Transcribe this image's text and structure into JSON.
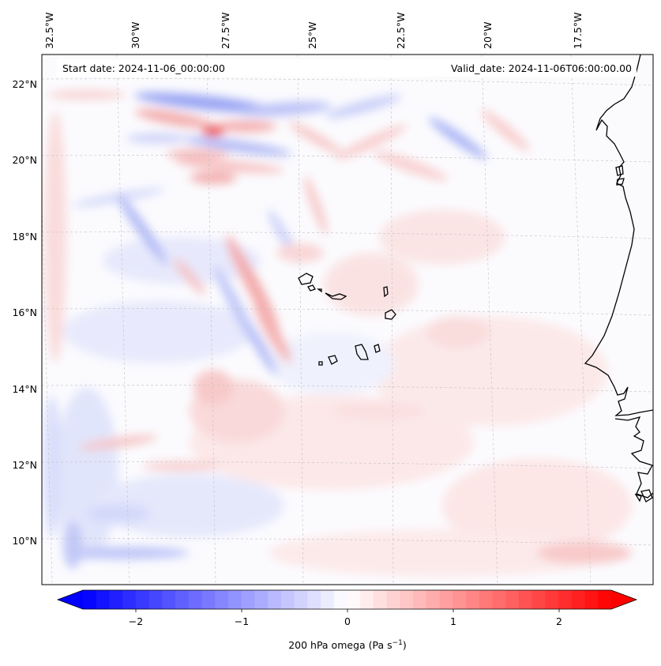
{
  "map": {
    "header_left": "Start date: 2024-11-06_00:00:00",
    "header_right": "Valid_date: 2024-11-06T06:00:00.00",
    "lon_labels": [
      "32.5°W",
      "30°W",
      "27.5°W",
      "25°W",
      "22.5°W",
      "20°W",
      "17.5°W"
    ],
    "lat_labels": [
      "22°N",
      "20°N",
      "18°N",
      "16°N",
      "14°N",
      "12°N",
      "10°N"
    ],
    "field": "omega",
    "level": "200 hPa"
  },
  "colorbar": {
    "ticks": [
      "−2",
      "−1",
      "0",
      "1",
      "2"
    ],
    "label_main": "200 hPa omega (Pa s",
    "label_exp": "−1",
    "label_close": ")",
    "range": [
      -2.6,
      2.6
    ],
    "colors": {
      "negative": "#0000ff",
      "zero": "#ffffff",
      "positive": "#ff0000"
    }
  }
}
